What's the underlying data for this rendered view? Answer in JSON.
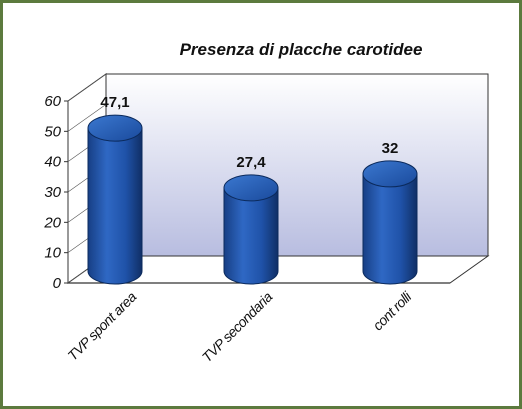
{
  "chart_data": {
    "type": "bar",
    "title": "Presenza di placche carotidee",
    "categories": [
      "TVP spont area",
      "TVP secondaria",
      "cont rolli"
    ],
    "values": [
      47.1,
      27.4,
      32
    ],
    "value_labels": [
      "47,1",
      "27,4",
      "32"
    ],
    "ylim": [
      0,
      60
    ],
    "yticks": [
      0,
      10,
      20,
      30,
      40,
      50,
      60
    ],
    "xlabel": "",
    "ylabel": "",
    "style": "3d-cylinder",
    "bar_color": "#1f56b0",
    "back_wall_gradient": [
      "#ffffff",
      "#b8bde0"
    ],
    "frame_color": "#5c7a3e",
    "legend": false,
    "grid": false
  }
}
